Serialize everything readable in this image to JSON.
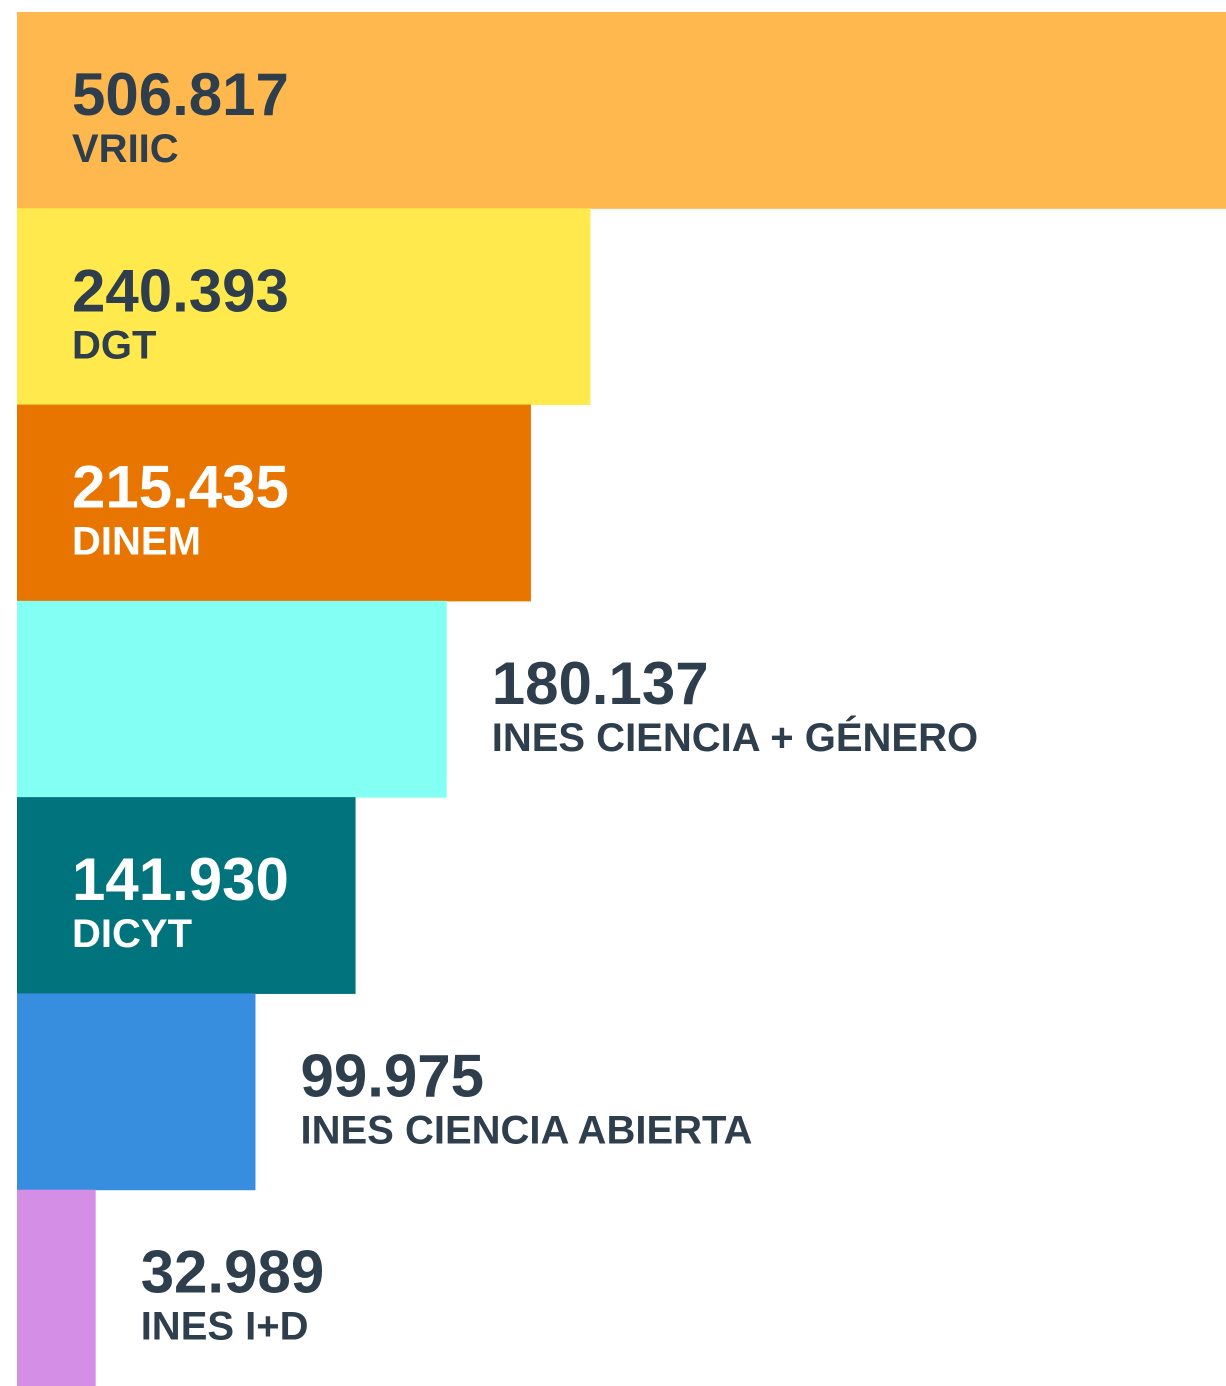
{
  "chart_data": {
    "type": "bar",
    "orientation": "horizontal",
    "categories": [
      "VRIIC",
      "DGT",
      "DINEM",
      "INES CIENCIA + GÉNERO",
      "DICYT",
      "INES CIENCIA ABIERTA",
      "INES I+D"
    ],
    "values": [
      506817,
      240393,
      215435,
      180137,
      141930,
      99975,
      32989
    ],
    "value_labels": [
      "506.817",
      "240.393",
      "215.435",
      "180.137",
      "141.930",
      "99.975",
      "32.989"
    ],
    "colors": [
      "#ffb84d",
      "#ffe94d",
      "#e87500",
      "#84fff4",
      "#00737c",
      "#388ede",
      "#d58ee5"
    ]
  }
}
